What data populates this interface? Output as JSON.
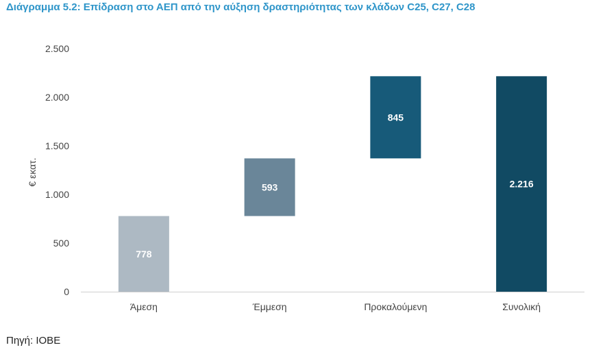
{
  "title": "Διάγραμμα  5.2: Επίδραση στο ΑΕΠ από την αύξηση δραστηριότητας των κλάδων C25, C27, C28",
  "source": "Πηγή: ΙΟΒΕ",
  "chart_data": {
    "type": "bar",
    "subtype": "waterfall",
    "ylabel": "€ εκατ.",
    "xlabel": "",
    "ylim": [
      0,
      2500
    ],
    "yticks": [
      0,
      500,
      1000,
      1500,
      2000,
      2500
    ],
    "ytick_labels": [
      "0",
      "500",
      "1.000",
      "1.500",
      "2.000",
      "2.500"
    ],
    "categories": [
      "Άμεση",
      "Έμμεση",
      "Προκαλούμενη",
      "Συνολική"
    ],
    "values": [
      778,
      593,
      845,
      2216
    ],
    "bases": [
      0,
      778,
      1371,
      0
    ],
    "value_labels": [
      "778",
      "593",
      "845",
      "2.216"
    ],
    "colors": [
      "#adb9c3",
      "#6a8699",
      "#175a79",
      "#114a63"
    ],
    "grid": false,
    "legend": "none"
  }
}
